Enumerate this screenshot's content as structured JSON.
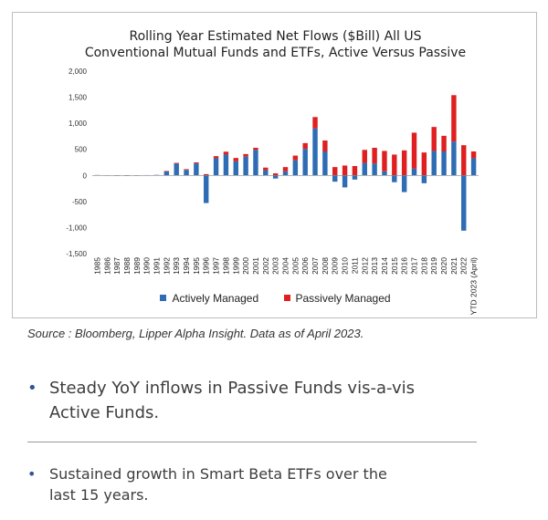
{
  "chart_data": {
    "type": "bar",
    "stacked": true,
    "title_lines": [
      "Rolling Year Estimated Net Flows ($Bill) All US",
      "Conventional Mutual Funds and ETFs, Active Versus Passive"
    ],
    "xlabel": "",
    "ylabel": "",
    "ylim": [
      -1500,
      2000
    ],
    "yticks": [
      2000,
      1500,
      1000,
      500,
      0,
      -500,
      -1000,
      -1500
    ],
    "ytick_labels": [
      "2,000",
      "1,500",
      "1,000",
      "500",
      "0",
      "-500",
      "-1,000",
      "-1,500"
    ],
    "grid": false,
    "legend_position": "bottom",
    "categories": [
      "1985",
      "1986",
      "1987",
      "1988",
      "1989",
      "1990",
      "1991",
      "1992",
      "1993",
      "1994",
      "1995",
      "1996",
      "1997",
      "1998",
      "1999",
      "2000",
      "2001",
      "2002",
      "2003",
      "2004",
      "2005",
      "2006",
      "2007",
      "2008",
      "2009",
      "2010",
      "2011",
      "2012",
      "2013",
      "2014",
      "2015",
      "2016",
      "2017",
      "2018",
      "2019",
      "2020",
      "2021",
      "2022",
      "YTD 2023 (April)"
    ],
    "series": [
      {
        "name": "Actively Managed",
        "color": "#2e6db4",
        "values": [
          8,
          5,
          3,
          2,
          4,
          6,
          10,
          75,
          225,
          105,
          230,
          -530,
          330,
          400,
          270,
          360,
          490,
          100,
          -60,
          80,
          290,
          510,
          900,
          460,
          -120,
          -230,
          -80,
          240,
          230,
          80,
          -130,
          -320,
          130,
          -150,
          470,
          460,
          650,
          -1060,
          330
        ]
      },
      {
        "name": "Passively Managed",
        "color": "#e02020",
        "values": [
          0,
          0,
          0,
          0,
          0,
          0,
          0,
          10,
          15,
          15,
          20,
          25,
          40,
          55,
          65,
          50,
          40,
          50,
          40,
          80,
          90,
          110,
          220,
          210,
          160,
          190,
          180,
          250,
          300,
          390,
          400,
          480,
          690,
          440,
          460,
          300,
          890,
          580,
          130
        ]
      }
    ]
  },
  "source": "Source : Bloomberg, Lipper Alpha Insight. Data as of April 2023.",
  "bullets": [
    {
      "icon": "bullet-dot",
      "text_line1": "Steady YoY inflows in Passive Funds vis-a-vis",
      "text_line2": "Active Funds."
    },
    {
      "icon": "bullet-dot",
      "text_line1": "Sustained growth in Smart Beta ETFs over the",
      "text_line2": "last 15 years."
    }
  ]
}
